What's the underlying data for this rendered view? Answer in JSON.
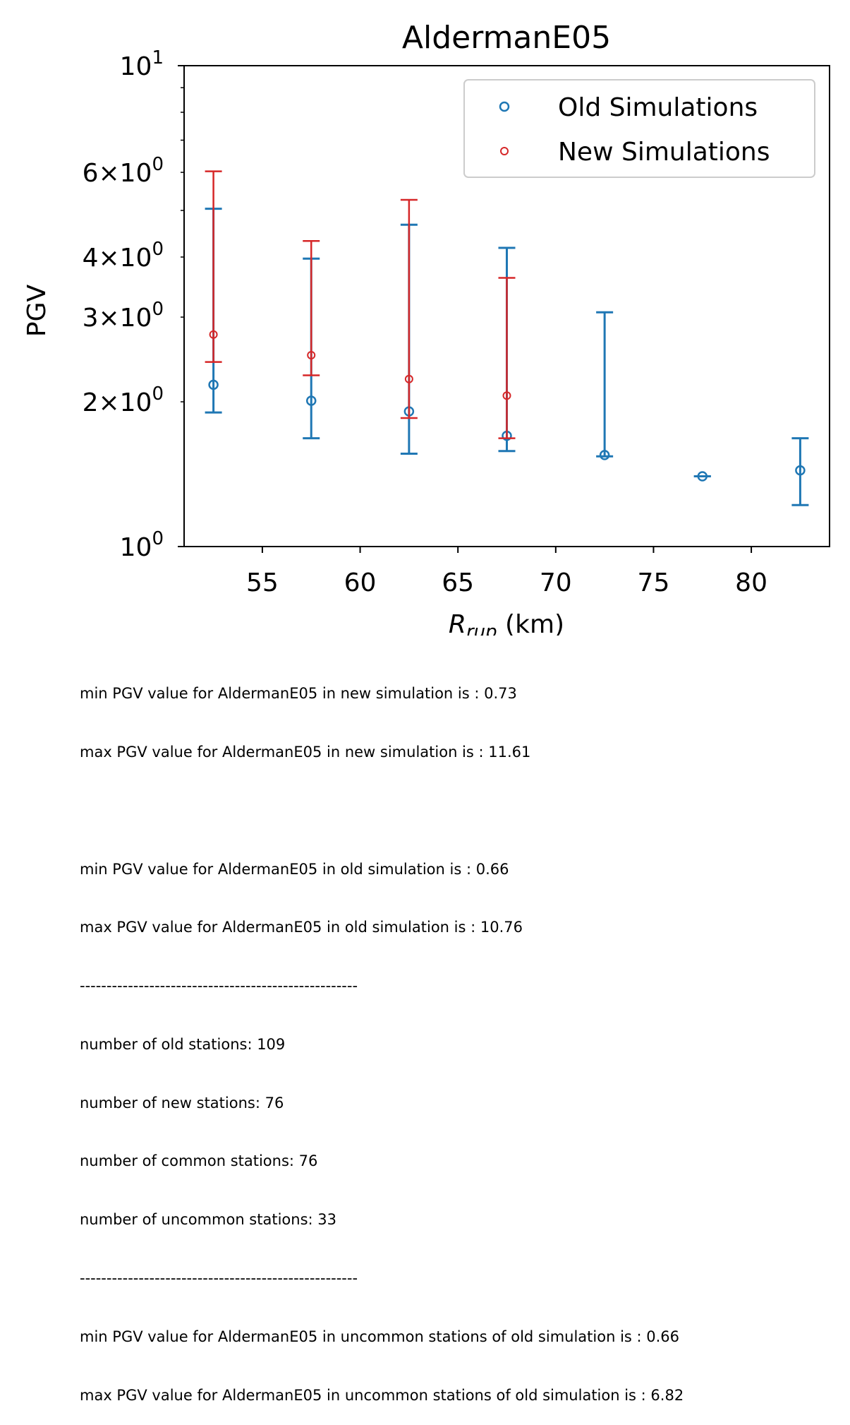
{
  "chart_data": {
    "type": "scatter",
    "title": "AldermanE05",
    "xlabel_main": "R",
    "xlabel_sub": "rup",
    "xlabel_unit": " (km)",
    "ylabel": "PGV",
    "y_scale": "log",
    "xlim": [
      51,
      84
    ],
    "ylim": [
      1,
      10
    ],
    "x_ticks": [
      55,
      60,
      65,
      70,
      75,
      80
    ],
    "y_ticks": [
      {
        "value": 1,
        "mant": "",
        "base": "10",
        "exp": "0"
      },
      {
        "value": 2,
        "mant": "2",
        "base": "10",
        "exp": "0"
      },
      {
        "value": 3,
        "mant": "3",
        "base": "10",
        "exp": "0"
      },
      {
        "value": 4,
        "mant": "4",
        "base": "10",
        "exp": "0"
      },
      {
        "value": 6,
        "mant": "6",
        "base": "10",
        "exp": "0"
      },
      {
        "value": 10,
        "mant": "",
        "base": "10",
        "exp": "1"
      }
    ],
    "legend_position": "upper right",
    "series": [
      {
        "name": "Old Simulations",
        "color": "#1f77b4",
        "x": [
          52.5,
          57.5,
          62.5,
          67.5,
          72.5,
          77.5,
          82.5
        ],
        "y": [
          2.17,
          2.01,
          1.91,
          1.7,
          1.55,
          1.4,
          1.44
        ],
        "yerr_low": [
          1.9,
          1.68,
          1.56,
          1.58,
          1.54,
          1.4,
          1.22
        ],
        "yerr_high": [
          5.04,
          3.97,
          4.67,
          4.18,
          3.07,
          1.4,
          1.68
        ]
      },
      {
        "name": "New Simulations",
        "color": "#d62728",
        "x": [
          52.5,
          57.5,
          62.5,
          67.5
        ],
        "y": [
          2.76,
          2.5,
          2.23,
          2.06
        ],
        "yerr_low": [
          2.42,
          2.27,
          1.85,
          1.68
        ],
        "yerr_high": [
          6.03,
          4.32,
          5.26,
          3.62
        ]
      }
    ]
  },
  "notes": [
    "min PGV value for AldermanE05 in new simulation is : 0.73",
    "max PGV value for AldermanE05 in new simulation is : 11.61",
    "",
    "min PGV value for AldermanE05 in old simulation is : 0.66",
    "max PGV value for AldermanE05 in old simulation is : 10.76",
    "----------------------------------------------------",
    "number of old stations: 109",
    "number of new stations: 76",
    "number of common stations: 76",
    "number of uncommon stations: 33",
    "----------------------------------------------------",
    "min PGV value for AldermanE05 in uncommon stations of old simulation is : 0.66",
    "max PGV value for AldermanE05 in uncommon stations of old simulation is : 6.82"
  ]
}
